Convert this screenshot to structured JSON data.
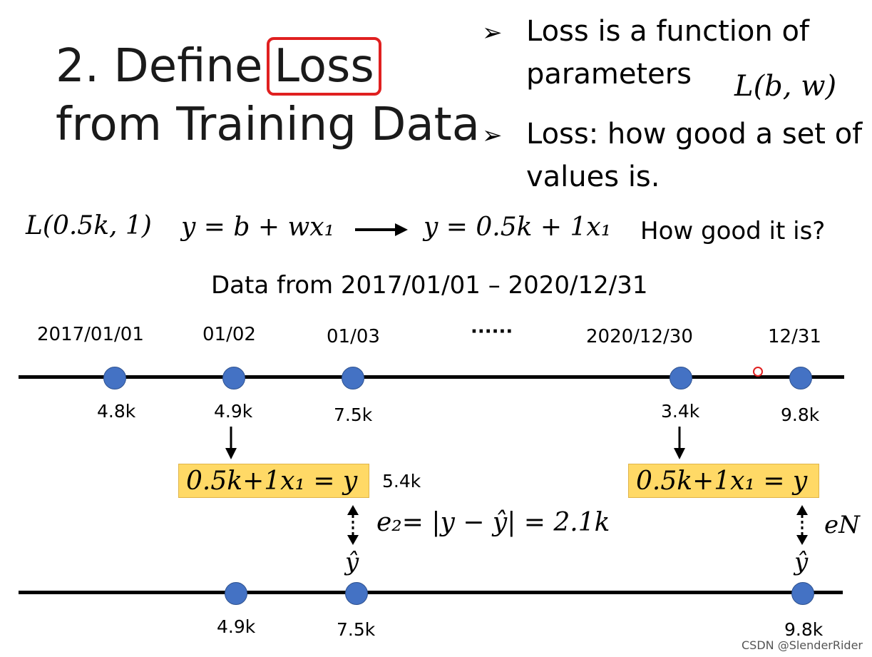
{
  "title": {
    "line1_prefix": "2. Define",
    "line1_boxed": "Loss",
    "line2": "from Training Data"
  },
  "bullets": [
    {
      "arrow": "➢",
      "line1": "Loss is a function of",
      "line2": "parameters",
      "formula": "L(b, w)"
    },
    {
      "arrow": "➢",
      "line1": "Loss: how good a set of",
      "line2": "values is."
    }
  ],
  "equation_line": {
    "loss_call": "L(0.5k, 1)",
    "model": "y = b + wx₁",
    "instance": "y = 0.5k + 1x₁",
    "question": "How good it is?"
  },
  "data_header": "Data from 2017/01/01 – 2020/12/31",
  "top_timeline": {
    "dates": [
      "2017/01/01",
      "01/02",
      "01/03",
      "······",
      "2020/12/30",
      "12/31"
    ],
    "values": [
      "4.8k",
      "4.9k",
      "7.5k",
      "3.4k",
      "9.8k"
    ]
  },
  "prediction_boxes": [
    {
      "text": "0.5k+1x₁ = y",
      "result": "5.4k"
    },
    {
      "text": "0.5k+1x₁ = y"
    }
  ],
  "errors": {
    "e2": "e₂= |y − ŷ| = 2.1k",
    "eN": "eN",
    "yhat": "ŷ"
  },
  "bottom_timeline": {
    "values": [
      "4.9k",
      "7.5k",
      "9.8k"
    ]
  },
  "watermark": "CSDN @SlenderRider",
  "colors": {
    "dot": "#4472c4",
    "box": "#ffd966",
    "highlight": "#e02020"
  }
}
